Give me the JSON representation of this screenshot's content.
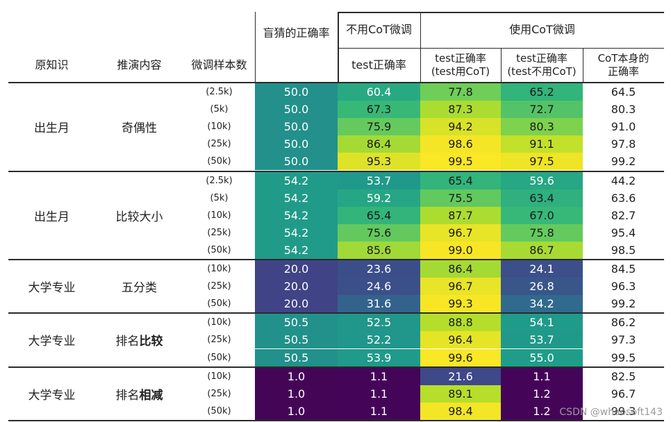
{
  "header": {
    "yuan_zhishi": "原知识",
    "tuiyan_neirong": "推演内容",
    "weitiao_yangben": "微调样本数",
    "guess_correct": "盲猜的正确率",
    "no_cot_group": "不用CoT微调",
    "cot_group": "使用CoT微调",
    "col_test_acc": "test正确率",
    "col_test_with_cot_1": "test正确率",
    "col_test_with_cot_2": "(test用CoT)",
    "col_test_no_cot_1": "test正确率",
    "col_test_no_cot_2": "(test不用CoT)",
    "col_cot_self_1": "CoT本身的",
    "col_cot_self_2": "正确率"
  },
  "groups": [
    {
      "knowledge": "出生月",
      "task": "奇偶性",
      "task_plain": "奇偶性",
      "task_bold": "",
      "rows": [
        {
          "samples": "(2.5k)",
          "guess": "50.0",
          "nocot": "60.4",
          "cot_test": "77.8",
          "cot_nocot": "65.2",
          "cot_self": "64.5"
        },
        {
          "samples": "(5k)",
          "guess": "50.0",
          "nocot": "67.3",
          "cot_test": "87.3",
          "cot_nocot": "72.7",
          "cot_self": "80.3"
        },
        {
          "samples": "(10k)",
          "guess": "50.0",
          "nocot": "75.9",
          "cot_test": "94.2",
          "cot_nocot": "80.3",
          "cot_self": "91.0"
        },
        {
          "samples": "(25k)",
          "guess": "50.0",
          "nocot": "86.4",
          "cot_test": "98.6",
          "cot_nocot": "91.1",
          "cot_self": "97.8"
        },
        {
          "samples": "(50k)",
          "guess": "50.0",
          "nocot": "95.3",
          "cot_test": "99.5",
          "cot_nocot": "97.5",
          "cot_self": "99.2"
        }
      ]
    },
    {
      "knowledge": "出生月",
      "task_plain": "比较大小",
      "task_bold": "",
      "rows": [
        {
          "samples": "(2.5k)",
          "guess": "54.2",
          "nocot": "53.7",
          "cot_test": "65.4",
          "cot_nocot": "59.6",
          "cot_self": "44.2"
        },
        {
          "samples": "(5k)",
          "guess": "54.2",
          "nocot": "59.2",
          "cot_test": "75.5",
          "cot_nocot": "63.4",
          "cot_self": "63.6"
        },
        {
          "samples": "(10k)",
          "guess": "54.2",
          "nocot": "65.4",
          "cot_test": "87.7",
          "cot_nocot": "67.0",
          "cot_self": "82.7"
        },
        {
          "samples": "(25k)",
          "guess": "54.2",
          "nocot": "75.6",
          "cot_test": "96.7",
          "cot_nocot": "75.8",
          "cot_self": "95.4"
        },
        {
          "samples": "(50k)",
          "guess": "54.2",
          "nocot": "85.6",
          "cot_test": "99.0",
          "cot_nocot": "86.7",
          "cot_self": "98.5"
        }
      ]
    },
    {
      "knowledge": "大学专业",
      "task_plain": "五分类",
      "task_bold": "",
      "rows": [
        {
          "samples": "(10k)",
          "guess": "20.0",
          "nocot": "23.6",
          "cot_test": "86.4",
          "cot_nocot": "24.1",
          "cot_self": "84.5"
        },
        {
          "samples": "(25k)",
          "guess": "20.0",
          "nocot": "24.6",
          "cot_test": "96.7",
          "cot_nocot": "26.8",
          "cot_self": "96.3"
        },
        {
          "samples": "(50k)",
          "guess": "20.0",
          "nocot": "31.6",
          "cot_test": "99.3",
          "cot_nocot": "34.2",
          "cot_self": "99.2"
        }
      ]
    },
    {
      "knowledge": "大学专业",
      "task_plain": "排名",
      "task_bold": "比较",
      "rows": [
        {
          "samples": "(10k)",
          "guess": "50.5",
          "nocot": "52.5",
          "cot_test": "88.8",
          "cot_nocot": "54.1",
          "cot_self": "86.2"
        },
        {
          "samples": "(25k)",
          "guess": "50.5",
          "nocot": "52.2",
          "cot_test": "96.4",
          "cot_nocot": "53.7",
          "cot_self": "97.3"
        },
        {
          "samples": "(50k)",
          "guess": "50.5",
          "nocot": "53.9",
          "cot_test": "99.6",
          "cot_nocot": "55.0",
          "cot_self": "99.5"
        }
      ]
    },
    {
      "knowledge": "大学专业",
      "task_plain": "排名",
      "task_bold": "相减",
      "rows": [
        {
          "samples": "(10k)",
          "guess": "1.0",
          "nocot": "1.1",
          "cot_test": "21.6",
          "cot_nocot": "1.1",
          "cot_self": "82.5"
        },
        {
          "samples": "(25k)",
          "guess": "1.0",
          "nocot": "1.1",
          "cot_test": "89.1",
          "cot_nocot": "1.2",
          "cot_self": "96.7"
        },
        {
          "samples": "(50k)",
          "guess": "1.0",
          "nocot": "1.1",
          "cot_test": "98.4",
          "cot_nocot": "1.2",
          "cot_self": "99.3"
        }
      ]
    }
  ],
  "colormap": "viridis",
  "color_range": [
    0,
    100
  ],
  "watermark": "CSDN @whaosoft143"
}
